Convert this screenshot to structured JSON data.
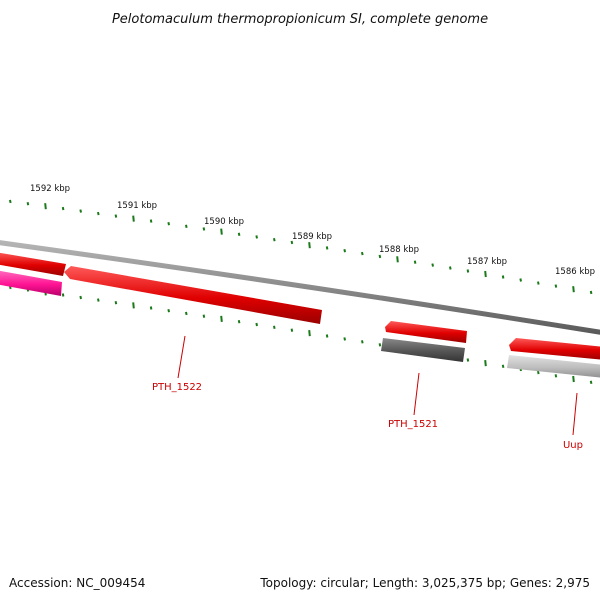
{
  "title": "Pelotomaculum thermopropionicum SI, complete genome",
  "accession_text": "Accession: NC_009454",
  "summary_text": "Topology: circular; Length: 3,025,375 bp; Genes: 2,975",
  "colors": {
    "backbone": "#8a8a8a",
    "tick": "#1a7a1a",
    "gene_red": "#ee0000",
    "gene_pink": "#ff1493",
    "gene_dark_gray": "#555555",
    "gene_light_gray": "#bbbbbb",
    "label": "#cc0000"
  },
  "scale_labels": [
    "1592 kbp",
    "1591 kbp",
    "1590 kbp",
    "1589 kbp",
    "1588 kbp",
    "1587 kbp",
    "1586 kbp"
  ],
  "gene_labels": [
    {
      "name": "PTH_1522"
    },
    {
      "name": "PTH_1521"
    },
    {
      "name": "Uup"
    }
  ]
}
